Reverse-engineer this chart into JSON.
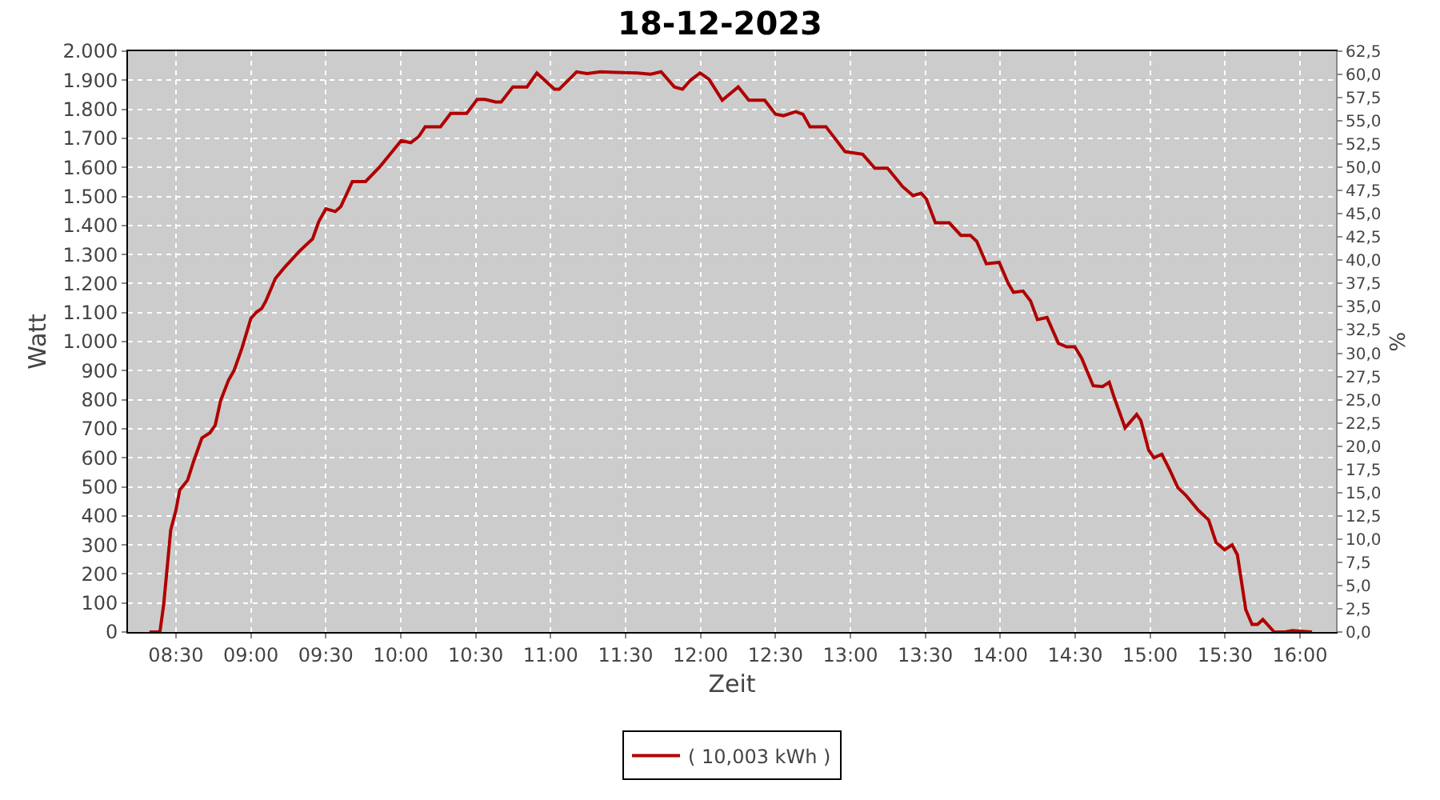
{
  "chart_data": {
    "type": "line",
    "title": "18-12-2023",
    "xlabel": "Zeit",
    "ylabel": "Watt",
    "y2label": "%",
    "xlim": [
      8.18,
      16.24
    ],
    "xticks": [
      {
        "value": 8.5,
        "label": "08:30"
      },
      {
        "value": 9,
        "label": "09:00"
      },
      {
        "value": 9.5,
        "label": "09:30"
      },
      {
        "value": 10,
        "label": "10:00"
      },
      {
        "value": 10.5,
        "label": "10:30"
      },
      {
        "value": 11,
        "label": "11:00"
      },
      {
        "value": 11.5,
        "label": "11:30"
      },
      {
        "value": 12,
        "label": "12:00"
      },
      {
        "value": 12.5,
        "label": "12:30"
      },
      {
        "value": 13,
        "label": "13:00"
      },
      {
        "value": 13.5,
        "label": "13:30"
      },
      {
        "value": 14,
        "label": "14:00"
      },
      {
        "value": 14.5,
        "label": "14:30"
      },
      {
        "value": 15,
        "label": "15:00"
      },
      {
        "value": 15.5,
        "label": "15:30"
      },
      {
        "value": 16,
        "label": "16:00"
      }
    ],
    "ylim": [
      0,
      2000
    ],
    "yticks": [
      0,
      100,
      200,
      300,
      400,
      500,
      600,
      700,
      800,
      900,
      {
        "value": 1000,
        "label": "1.000"
      },
      {
        "value": 1100,
        "label": "1.100"
      },
      {
        "value": 1200,
        "label": "1.200"
      },
      {
        "value": 1300,
        "label": "1.300"
      },
      {
        "value": 1400,
        "label": "1.400"
      },
      {
        "value": 1500,
        "label": "1.500"
      },
      {
        "value": 1600,
        "label": "1.600"
      },
      {
        "value": 1700,
        "label": "1.700"
      },
      {
        "value": 1800,
        "label": "1.800"
      },
      {
        "value": 1900,
        "label": "1.900"
      },
      {
        "value": 2000,
        "label": "2.000"
      }
    ],
    "y2lim": [
      0,
      62.5
    ],
    "y2ticks": [
      {
        "value": 0,
        "label": "0,0"
      },
      {
        "value": 2.5,
        "label": "2,5"
      },
      {
        "value": 5,
        "label": "5,0"
      },
      {
        "value": 7.5,
        "label": "7,5"
      },
      {
        "value": 10,
        "label": "10,0"
      },
      {
        "value": 12.5,
        "label": "12,5"
      },
      {
        "value": 15,
        "label": "15,0"
      },
      {
        "value": 17.5,
        "label": "17,5"
      },
      {
        "value": 20,
        "label": "20,0"
      },
      {
        "value": 22.5,
        "label": "22,5"
      },
      {
        "value": 25,
        "label": "25,0"
      },
      {
        "value": 27.5,
        "label": "27,5"
      },
      {
        "value": 30,
        "label": "30,0"
      },
      {
        "value": 32.5,
        "label": "32,5"
      },
      {
        "value": 35,
        "label": "35,0"
      },
      {
        "value": 37.5,
        "label": "37,5"
      },
      {
        "value": 40,
        "label": "40,0"
      },
      {
        "value": 42.5,
        "label": "42,5"
      },
      {
        "value": 45,
        "label": "45,0"
      },
      {
        "value": 47.5,
        "label": "47,5"
      },
      {
        "value": 50,
        "label": "50,0"
      },
      {
        "value": 52.5,
        "label": "52,5"
      },
      {
        "value": 55,
        "label": "55,0"
      },
      {
        "value": 57.5,
        "label": "57,5"
      },
      {
        "value": 60,
        "label": "60,0"
      },
      {
        "value": 62.5,
        "label": "62,5"
      }
    ],
    "grid": true,
    "legend": "bottom",
    "marker": "none",
    "line_style": "solid",
    "series": [
      {
        "name": "( 10,003 kWh )",
        "color": "#b00000",
        "x": [
          8.323,
          8.393,
          8.418,
          8.465,
          8.5,
          8.525,
          8.578,
          8.62,
          8.673,
          8.727,
          8.762,
          8.798,
          8.85,
          8.887,
          8.94,
          9.0,
          9.038,
          9.072,
          9.1,
          9.163,
          9.217,
          9.323,
          9.412,
          9.453,
          9.5,
          9.563,
          9.6,
          9.677,
          9.765,
          9.862,
          9.943,
          10.003,
          10.067,
          10.12,
          10.163,
          10.265,
          10.333,
          10.44,
          10.51,
          10.563,
          10.633,
          10.67,
          10.748,
          10.842,
          10.908,
          11.025,
          11.057,
          11.173,
          11.243,
          11.332,
          11.578,
          11.667,
          11.737,
          11.825,
          11.88,
          11.933,
          11.997,
          12.057,
          12.145,
          12.252,
          12.322,
          12.428,
          12.5,
          12.553,
          12.635,
          12.683,
          12.73,
          12.837,
          12.965,
          13.082,
          13.163,
          13.248,
          13.348,
          13.418,
          13.472,
          13.507,
          13.567,
          13.66,
          13.737,
          13.8,
          13.843,
          13.907,
          13.993,
          14.053,
          14.088,
          14.152,
          14.202,
          14.248,
          14.312,
          14.388,
          14.442,
          14.497,
          14.543,
          14.62,
          14.683,
          14.727,
          14.762,
          14.833,
          14.91,
          14.938,
          14.99,
          15.025,
          15.078,
          15.132,
          15.185,
          15.238,
          15.32,
          15.39,
          15.44,
          15.497,
          15.547,
          15.582,
          15.638,
          15.68,
          15.717,
          15.752,
          15.828,
          15.9,
          15.947,
          16.08
        ],
        "values": [
          0,
          0,
          94,
          351,
          420,
          489,
          523,
          591,
          668,
          686,
          712,
          797,
          866,
          900,
          977,
          1080,
          1102,
          1114,
          1140,
          1217,
          1251,
          1311,
          1354,
          1414,
          1457,
          1448,
          1465,
          1551,
          1551,
          1603,
          1654,
          1692,
          1685,
          1706,
          1740,
          1740,
          1786,
          1786,
          1834,
          1834,
          1825,
          1825,
          1877,
          1877,
          1925,
          1869,
          1869,
          1929,
          1923,
          1929,
          1925,
          1921,
          1929,
          1877,
          1869,
          1900,
          1925,
          1903,
          1831,
          1877,
          1831,
          1831,
          1783,
          1778,
          1792,
          1783,
          1740,
          1740,
          1654,
          1645,
          1597,
          1597,
          1534,
          1503,
          1511,
          1491,
          1409,
          1409,
          1366,
          1366,
          1345,
          1268,
          1273,
          1200,
          1170,
          1174,
          1140,
          1076,
          1083,
          994,
          982,
          982,
          943,
          848,
          845,
          860,
          805,
          703,
          749,
          728,
          626,
          600,
          612,
          557,
          497,
          471,
          420,
          386,
          308,
          283,
          300,
          266,
          77,
          26,
          26,
          43,
          0,
          0,
          5,
          0
        ]
      }
    ]
  }
}
